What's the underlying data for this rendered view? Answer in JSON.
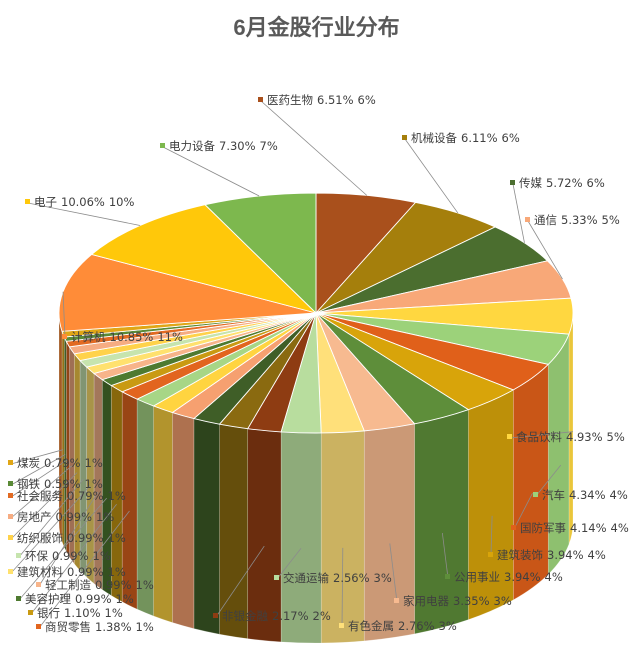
{
  "chart_data": {
    "type": "pie",
    "title": "6月金股行业分布",
    "slices": [
      {
        "name": "医药生物",
        "percent": "6.51%",
        "rounded": "6%",
        "value": 6.51,
        "color": "#A9501C"
      },
      {
        "name": "机械设备",
        "percent": "6.11%",
        "rounded": "6%",
        "value": 6.11,
        "color": "#A57F0C"
      },
      {
        "name": "传媒",
        "percent": "5.72%",
        "rounded": "6%",
        "value": 5.72,
        "color": "#4B6E2F"
      },
      {
        "name": "通信",
        "percent": "5.33%",
        "rounded": "5%",
        "value": 5.33,
        "color": "#F8A878"
      },
      {
        "name": "食品饮料",
        "percent": "4.93%",
        "rounded": "5%",
        "value": 4.93,
        "color": "#FFD740"
      },
      {
        "name": "汽车",
        "percent": "4.34%",
        "rounded": "4%",
        "value": 4.34,
        "color": "#9CD27A"
      },
      {
        "name": "国防军事",
        "percent": "4.14%",
        "rounded": "4%",
        "value": 4.14,
        "color": "#E0601A"
      },
      {
        "name": "建筑装饰",
        "percent": "3.94%",
        "rounded": "4%",
        "value": 3.94,
        "color": "#D8A40A"
      },
      {
        "name": "公用事业",
        "percent": "3.94%",
        "rounded": "4%",
        "value": 3.94,
        "color": "#5E8E3A"
      },
      {
        "name": "家用电器",
        "percent": "3.35%",
        "rounded": "3%",
        "value": 3.35,
        "color": "#F7BA90"
      },
      {
        "name": "有色金属",
        "percent": "2.76%",
        "rounded": "3%",
        "value": 2.76,
        "color": "#FFE07A"
      },
      {
        "name": "交通运输",
        "percent": "2.56%",
        "rounded": "3%",
        "value": 2.56,
        "color": "#B8DD9E"
      },
      {
        "name": "非银金融",
        "percent": "2.17%",
        "rounded": "2%",
        "value": 2.17,
        "color": "#8E3C12"
      },
      {
        "name": "",
        "percent": "",
        "rounded": "",
        "value": 1.9,
        "color": "#8A6A10"
      },
      {
        "name": "",
        "percent": "",
        "rounded": "",
        "value": 1.8,
        "color": "#3F5E27"
      },
      {
        "name": "",
        "percent": "",
        "rounded": "",
        "value": 1.6,
        "color": "#F6A070"
      },
      {
        "name": "",
        "percent": "",
        "rounded": "",
        "value": 1.5,
        "color": "#FFD440"
      },
      {
        "name": "",
        "percent": "",
        "rounded": "",
        "value": 1.4,
        "color": "#A7D686"
      },
      {
        "name": "商贸零售",
        "percent": "1.38%",
        "rounded": "1%",
        "value": 1.38,
        "color": "#E2651F"
      },
      {
        "name": "银行",
        "percent": "1.10%",
        "rounded": "1%",
        "value": 1.1,
        "color": "#C99A12"
      },
      {
        "name": "美容护理",
        "percent": "0.99%",
        "rounded": "1%",
        "value": 0.99,
        "color": "#4E7A30"
      },
      {
        "name": "轻工制造",
        "percent": "0.99%",
        "rounded": "1%",
        "value": 0.99,
        "color": "#F7B48A"
      },
      {
        "name": "建筑材料",
        "percent": "0.99%",
        "rounded": "1%",
        "value": 0.99,
        "color": "#FFE16E"
      },
      {
        "name": "环保",
        "percent": "0.99%",
        "rounded": "1%",
        "value": 0.99,
        "color": "#C6E4AE"
      },
      {
        "name": "纺织服饰",
        "percent": "0.99%",
        "rounded": "1%",
        "value": 0.99,
        "color": "#FFD24A"
      },
      {
        "name": "房地产",
        "percent": "0.99%",
        "rounded": "1%",
        "value": 0.99,
        "color": "#F6AC82"
      },
      {
        "name": "社会服务",
        "percent": "0.79%",
        "rounded": "1%",
        "value": 0.79,
        "color": "#E26A22"
      },
      {
        "name": "钢铁",
        "percent": "0.59%",
        "rounded": "1%",
        "value": 0.59,
        "color": "#5A8A36"
      },
      {
        "name": "煤炭",
        "percent": "0.79%",
        "rounded": "1%",
        "value": 0.79,
        "color": "#E0A616"
      },
      {
        "name": "计算机",
        "percent": "10.85%",
        "rounded": "11%",
        "value": 10.85,
        "color": "#FF8C38"
      },
      {
        "name": "电子",
        "percent": "10.06%",
        "rounded": "10%",
        "value": 10.06,
        "color": "#FFC80A"
      },
      {
        "name": "电力设备",
        "percent": "7.30%",
        "rounded": "7%",
        "value": 7.3,
        "color": "#7DB84E"
      }
    ]
  }
}
